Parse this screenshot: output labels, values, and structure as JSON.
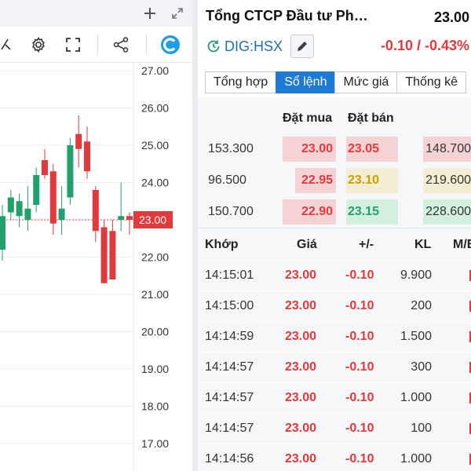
{
  "chart": {
    "price_axis": [
      "27.00",
      "26.00",
      "25.00",
      "24.00",
      "23.00",
      "22.00",
      "21.00",
      "20.00",
      "19.00",
      "18.00",
      "17.00"
    ],
    "current_price_label": "23.00",
    "candles": [
      {
        "o": 22.2,
        "h": 23.4,
        "l": 21.9,
        "c": 23.1
      },
      {
        "o": 23.2,
        "h": 23.8,
        "l": 23.0,
        "c": 23.6
      },
      {
        "o": 23.1,
        "h": 23.7,
        "l": 22.8,
        "c": 23.5
      },
      {
        "o": 23.0,
        "h": 23.9,
        "l": 22.7,
        "c": 23.3
      },
      {
        "o": 23.4,
        "h": 24.4,
        "l": 23.2,
        "c": 24.2
      },
      {
        "o": 24.6,
        "h": 24.9,
        "l": 24.1,
        "c": 24.2
      },
      {
        "o": 24.3,
        "h": 24.5,
        "l": 22.6,
        "c": 22.9
      },
      {
        "o": 23.0,
        "h": 23.9,
        "l": 22.6,
        "c": 23.3
      },
      {
        "o": 23.6,
        "h": 25.2,
        "l": 23.4,
        "c": 25.0
      },
      {
        "o": 25.3,
        "h": 25.8,
        "l": 24.4,
        "c": 24.9
      },
      {
        "o": 25.1,
        "h": 25.5,
        "l": 24.1,
        "c": 24.3
      },
      {
        "o": 23.8,
        "h": 23.9,
        "l": 22.4,
        "c": 22.7
      },
      {
        "o": 22.8,
        "h": 23.0,
        "l": 21.3,
        "c": 21.3
      },
      {
        "o": 22.7,
        "h": 23.0,
        "l": 21.4,
        "c": 21.4
      },
      {
        "o": 23.0,
        "h": 24.0,
        "l": 22.7,
        "c": 23.1
      },
      {
        "o": 23.1,
        "h": 23.2,
        "l": 22.6,
        "c": 23.0
      }
    ],
    "colors": {
      "up": "#22a06b",
      "down": "#e2393d",
      "grid": "#eceef1",
      "current": "#e2393d"
    }
  },
  "info": {
    "company_name": "Tổng CTCP Đầu tư Ph…",
    "price": "23.00",
    "ticker": "DIG:HSX",
    "change": "-0.10 / -0.43%",
    "tabs": [
      "Tổng hợp",
      "Sổ lệnh",
      "Mức giá",
      "Thống kê"
    ],
    "active_tab": "Sổ lệnh"
  },
  "order_book": {
    "head_bid": "Đặt mua",
    "head_ask": "Đặt bán",
    "rows": [
      {
        "bid_vol": "153.300",
        "bid": "23.00",
        "ask": "23.05",
        "ask_vol": "148.700",
        "ask_color": "#e2393d",
        "ask_bg": "#f5d3d5"
      },
      {
        "bid_vol": "96.500",
        "bid": "22.95",
        "ask": "23.10",
        "ask_vol": "219.600",
        "ask_color": "#c9a100",
        "ask_bg": "#f4ecd3"
      },
      {
        "bid_vol": "150.700",
        "bid": "22.90",
        "ask": "23.15",
        "ask_vol": "228.600",
        "ask_color": "#22a06b",
        "ask_bg": "#d3efdd"
      }
    ]
  },
  "trades": {
    "headers": {
      "time": "Khớp",
      "price": "Giá",
      "change": "+/-",
      "volume": "KL",
      "side": "M/B"
    },
    "rows": [
      {
        "time": "14:15:01",
        "price": "23.00",
        "change": "-0.10",
        "volume": "9.900"
      },
      {
        "time": "14:15:00",
        "price": "23.00",
        "change": "-0.10",
        "volume": "200"
      },
      {
        "time": "14:14:59",
        "price": "23.00",
        "change": "-0.10",
        "volume": "1.500"
      },
      {
        "time": "14:14:57",
        "price": "23.00",
        "change": "-0.10",
        "volume": "300"
      },
      {
        "time": "14:14:57",
        "price": "23.00",
        "change": "-0.10",
        "volume": "1.000"
      },
      {
        "time": "14:14:57",
        "price": "23.00",
        "change": "-0.10",
        "volume": "100"
      },
      {
        "time": "14:14:56",
        "price": "23.00",
        "change": "-0.10",
        "volume": "1.000"
      }
    ]
  }
}
